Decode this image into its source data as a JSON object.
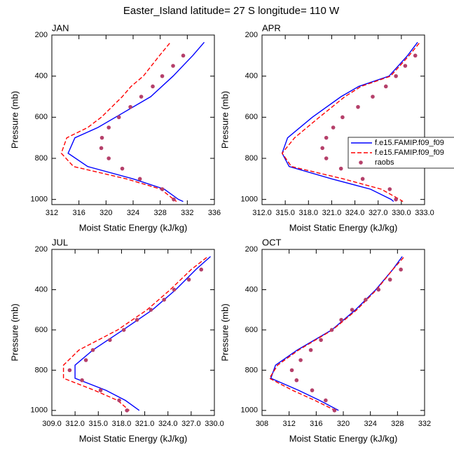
{
  "title": "Easter_Island  latitude= 27 S longitude= 110 W",
  "chart_data": [
    {
      "type": "line",
      "label": "JAN",
      "xlabel": "Moist Static Energy (kJ/kg)",
      "ylabel": "Pressure (mb)",
      "xlim": [
        312,
        336
      ],
      "xticks": [
        312,
        316,
        320,
        324,
        328,
        332,
        336
      ],
      "ylim": [
        1025,
        200
      ],
      "yticks": [
        200,
        400,
        600,
        800,
        1000
      ],
      "series": [
        {
          "color": "#0000ff",
          "style": "solid",
          "x": [
            334.5,
            332.8,
            329.9,
            326.6,
            321.4,
            318.8,
            315.4,
            314.4,
            317.3,
            324,
            328.6,
            330.7,
            331.4
          ],
          "y": [
            235,
            300,
            400,
            500,
            600,
            650,
            700,
            775,
            840,
            900,
            950,
            1000,
            1010
          ]
        },
        {
          "color": "#ff0000",
          "style": "dashed",
          "x": [
            329.4,
            327.9,
            325.5,
            323.7,
            322.4,
            319.3,
            317.3,
            314.2,
            313.4,
            315.2,
            323,
            328.1,
            330,
            330.4
          ],
          "y": [
            240,
            300,
            400,
            450,
            500,
            600,
            650,
            700,
            775,
            840,
            900,
            950,
            1000,
            1010
          ]
        },
        {
          "color": "#b5406a",
          "style": "markers",
          "x": [
            331.4,
            329.9,
            328.3,
            326.9,
            325.2,
            323.6,
            321.9,
            320.4,
            319.4,
            319.3,
            320.4,
            322.4,
            325,
            328.3,
            330
          ],
          "y": [
            300,
            350,
            400,
            450,
            500,
            550,
            600,
            650,
            700,
            750,
            800,
            850,
            900,
            950,
            1000
          ]
        }
      ]
    },
    {
      "type": "line",
      "label": "APR",
      "xlabel": "Moist Static Energy (kJ/kg)",
      "ylabel": "Pressure (mb)",
      "xlim": [
        312,
        333
      ],
      "xticks": [
        {
          "value": 312,
          "label": "312.0"
        },
        {
          "value": 315,
          "label": "315.0"
        },
        {
          "value": 318,
          "label": "318.0"
        },
        {
          "value": 321,
          "label": "321.0"
        },
        {
          "value": 324,
          "label": "324.0"
        },
        {
          "value": 327,
          "label": "327.0"
        },
        {
          "value": 330,
          "label": "330.0"
        },
        {
          "value": 333,
          "label": "333.0"
        }
      ],
      "ylim": [
        1025,
        200
      ],
      "yticks": [
        200,
        400,
        600,
        800,
        1000
      ],
      "legend": "right",
      "series": [
        {
          "name": "f.e15.FAMIP.f09_f09",
          "color": "#0000ff",
          "style": "solid",
          "x": [
            332.1,
            330.8,
            328.4,
            324.5,
            322.2,
            318.5,
            315.3,
            314.6,
            315.5,
            321,
            326,
            328.7,
            329
          ],
          "y": [
            235,
            300,
            400,
            450,
            500,
            600,
            700,
            775,
            840,
            900,
            950,
            1000,
            1010
          ]
        },
        {
          "name": "f.e15.FAMIP.f09_f09",
          "color": "#ff0000",
          "style": "dashed",
          "x": [
            332.3,
            331,
            328.6,
            324.8,
            322.7,
            319.4,
            316.2,
            314.6,
            315.8,
            322.5,
            327.4,
            329.8,
            330.2
          ],
          "y": [
            240,
            300,
            400,
            450,
            500,
            600,
            700,
            775,
            840,
            900,
            950,
            1000,
            1010
          ]
        },
        {
          "name": "raobs",
          "color": "#b5406a",
          "style": "markers",
          "x": [
            331.8,
            330.5,
            329.3,
            328,
            326.3,
            324.4,
            322.4,
            321.2,
            320.3,
            319.8,
            320.3,
            322.2,
            325,
            328.5,
            329.3
          ],
          "y": [
            300,
            350,
            400,
            450,
            500,
            550,
            600,
            650,
            700,
            750,
            800,
            850,
            900,
            950,
            1000
          ]
        }
      ]
    },
    {
      "type": "line",
      "label": "JUL",
      "xlabel": "Moist Static Energy (kJ/kg)",
      "ylabel": "Pressure (mb)",
      "xlim": [
        309,
        330
      ],
      "xticks": [
        {
          "value": 309,
          "label": "309.0"
        },
        {
          "value": 312,
          "label": "312.0"
        },
        {
          "value": 315,
          "label": "315.0"
        },
        {
          "value": 318,
          "label": "318.0"
        },
        {
          "value": 321,
          "label": "321.0"
        },
        {
          "value": 324,
          "label": "324.0"
        },
        {
          "value": 327,
          "label": "327.0"
        },
        {
          "value": 330,
          "label": "330.0"
        }
      ],
      "ylim": [
        1025,
        200
      ],
      "yticks": [
        200,
        400,
        600,
        800,
        1000
      ],
      "series": [
        {
          "color": "#0000ff",
          "style": "solid",
          "x": [
            329.5,
            327.6,
            325,
            322,
            318.2,
            314.3,
            312,
            312,
            316,
            318.5,
            320.3
          ],
          "y": [
            235,
            300,
            400,
            500,
            600,
            700,
            775,
            840,
            900,
            950,
            1000
          ]
        },
        {
          "color": "#ff0000",
          "style": "dashed",
          "x": [
            329,
            327,
            324.3,
            321.3,
            317.5,
            312.5,
            310.5,
            310.5,
            314.5,
            317.5,
            319
          ],
          "y": [
            240,
            300,
            400,
            500,
            600,
            700,
            775,
            840,
            900,
            950,
            1000
          ]
        },
        {
          "color": "#b5406a",
          "style": "markers",
          "x": [
            328.3,
            326.7,
            324.8,
            323.5,
            321.8,
            320,
            318.3,
            316.5,
            314.3,
            313.4,
            311.3,
            312.9,
            315.3,
            317.7,
            318.7
          ],
          "y": [
            300,
            350,
            400,
            450,
            500,
            550,
            600,
            650,
            700,
            750,
            800,
            850,
            900,
            950,
            1000
          ]
        }
      ]
    },
    {
      "type": "line",
      "label": "OCT",
      "xlabel": "Moist Static Energy (kJ/kg)",
      "ylabel": "Pressure (mb)",
      "xlim": [
        308,
        332
      ],
      "xticks": [
        308,
        312,
        316,
        320,
        324,
        328,
        332
      ],
      "ylim": [
        1025,
        200
      ],
      "yticks": [
        200,
        400,
        600,
        800,
        1000
      ],
      "series": [
        {
          "color": "#0000ff",
          "style": "solid",
          "x": [
            328.7,
            327.3,
            324.8,
            321.8,
            318.3,
            313.2,
            310,
            309.3,
            313.4,
            316.5,
            319.3
          ],
          "y": [
            235,
            300,
            400,
            500,
            600,
            700,
            775,
            840,
            900,
            950,
            1000
          ]
        },
        {
          "color": "#ff0000",
          "style": "dashed",
          "x": [
            328.9,
            327.3,
            324.9,
            322,
            318.4,
            313.4,
            310.3,
            309.1,
            312.5,
            315.8,
            318.8
          ],
          "y": [
            240,
            300,
            400,
            500,
            600,
            700,
            775,
            840,
            900,
            950,
            1000
          ]
        },
        {
          "color": "#b5406a",
          "style": "markers",
          "x": [
            328.5,
            326.9,
            325.2,
            323.3,
            321.3,
            319.7,
            318.3,
            316.7,
            315.2,
            313.7,
            312.4,
            313.1,
            315.4,
            317.4,
            318.7
          ],
          "y": [
            300,
            350,
            400,
            450,
            500,
            550,
            600,
            650,
            700,
            750,
            800,
            850,
            900,
            950,
            1000
          ]
        }
      ]
    }
  ]
}
